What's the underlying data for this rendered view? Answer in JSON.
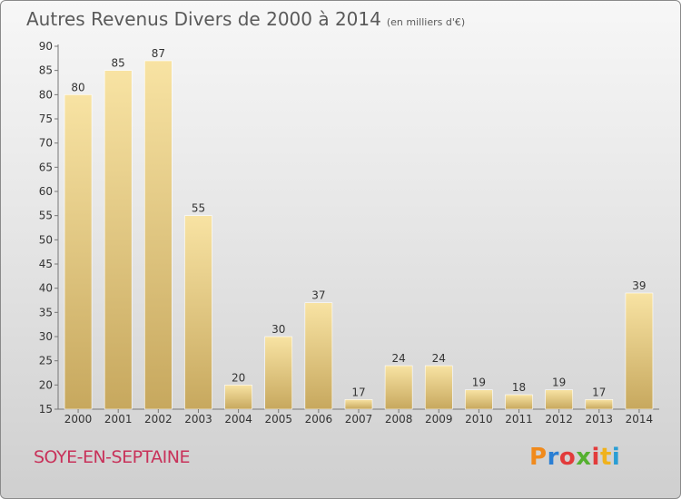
{
  "header": {
    "title": "Autres Revenus Divers de 2000 à 2014",
    "units": "(en milliers d'€)"
  },
  "footer": {
    "commune": "SOYE-EN-SEPTAINE",
    "logo_letters": [
      "P",
      "r",
      "o",
      "x",
      "i",
      "t",
      "i"
    ],
    "logo_colors": [
      "#f08a1c",
      "#2a7fd4",
      "#e23b3b",
      "#55b030",
      "#e23b3b",
      "#f0b21c",
      "#2a9ed4"
    ]
  },
  "colors": {
    "bar_light": "#f8e3a3",
    "bar_dark": "#c7a85e",
    "axis": "#777777",
    "text": "#333333"
  },
  "chart_data": {
    "type": "bar",
    "categories": [
      "2000",
      "2001",
      "2002",
      "2003",
      "2004",
      "2005",
      "2006",
      "2007",
      "2008",
      "2009",
      "2010",
      "2011",
      "2012",
      "2013",
      "2014"
    ],
    "values": [
      80,
      85,
      87,
      55,
      20,
      30,
      37,
      17,
      24,
      24,
      19,
      18,
      19,
      17,
      39
    ],
    "ylim": [
      15,
      90
    ],
    "yticks": [
      15,
      20,
      25,
      30,
      35,
      40,
      45,
      50,
      55,
      60,
      65,
      70,
      75,
      80,
      85,
      90
    ],
    "grid": false,
    "legend": "none"
  }
}
